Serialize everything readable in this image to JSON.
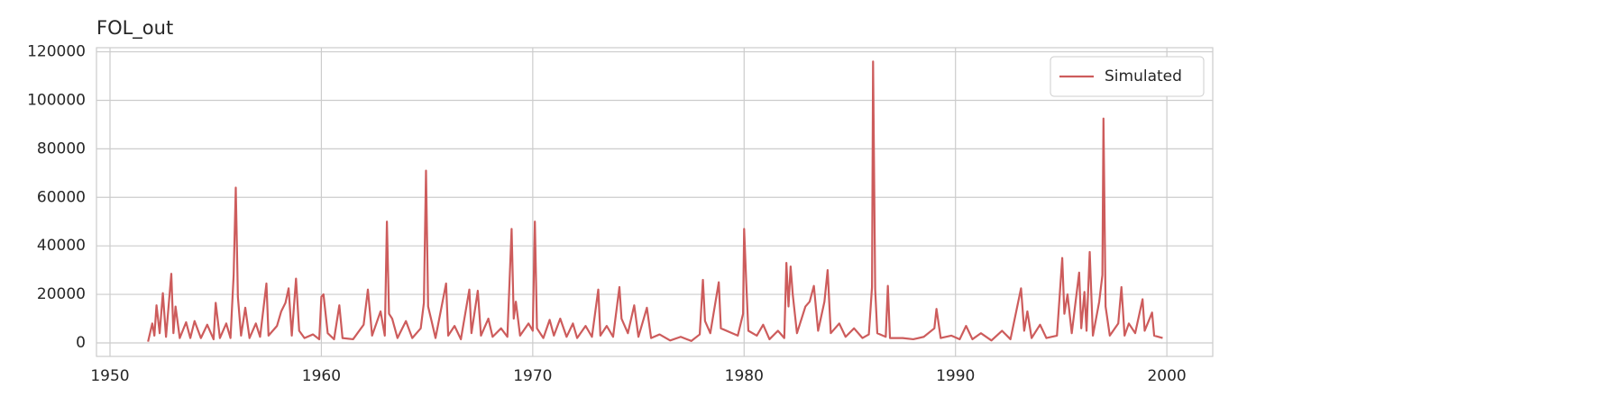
{
  "chart_data": {
    "type": "line",
    "title": "FOL_out",
    "x": [
      1951.8,
      1952.0,
      1952.1,
      1952.2,
      1952.35,
      1952.5,
      1952.65,
      1952.9,
      1953.0,
      1953.1,
      1953.3,
      1953.6,
      1953.8,
      1954.0,
      1954.3,
      1954.6,
      1954.9,
      1955.0,
      1955.2,
      1955.5,
      1955.7,
      1955.85,
      1955.95,
      1956.05,
      1956.2,
      1956.4,
      1956.6,
      1956.9,
      1957.1,
      1957.4,
      1957.5,
      1957.9,
      1958.1,
      1958.3,
      1958.45,
      1958.6,
      1958.8,
      1958.95,
      1959.2,
      1959.6,
      1959.9,
      1960.0,
      1960.1,
      1960.3,
      1960.6,
      1960.85,
      1961.0,
      1961.5,
      1962.0,
      1962.2,
      1962.4,
      1962.8,
      1963.0,
      1963.1,
      1963.2,
      1963.35,
      1963.6,
      1964.0,
      1964.3,
      1964.7,
      1964.85,
      1964.95,
      1965.05,
      1965.2,
      1965.4,
      1965.9,
      1966.0,
      1966.3,
      1966.6,
      1967.0,
      1967.1,
      1967.4,
      1967.55,
      1967.9,
      1968.1,
      1968.5,
      1968.8,
      1969.0,
      1969.1,
      1969.2,
      1969.4,
      1969.8,
      1970.0,
      1970.1,
      1970.2,
      1970.5,
      1970.8,
      1971.0,
      1971.3,
      1971.6,
      1971.9,
      1972.1,
      1972.5,
      1972.8,
      1973.1,
      1973.2,
      1973.5,
      1973.8,
      1974.1,
      1974.2,
      1974.5,
      1974.8,
      1975.0,
      1975.4,
      1975.6,
      1976.0,
      1976.5,
      1977.0,
      1977.5,
      1977.9,
      1978.05,
      1978.15,
      1978.4,
      1978.8,
      1978.9,
      1979.3,
      1979.7,
      1979.95,
      1980.0,
      1980.1,
      1980.2,
      1980.6,
      1980.9,
      1981.2,
      1981.6,
      1981.9,
      1982.0,
      1982.1,
      1982.2,
      1982.3,
      1982.5,
      1982.9,
      1983.1,
      1983.3,
      1983.5,
      1983.8,
      1983.95,
      1984.1,
      1984.5,
      1984.8,
      1985.2,
      1985.6,
      1985.9,
      1986.05,
      1986.1,
      1986.2,
      1986.3,
      1986.7,
      1986.8,
      1986.9,
      1987.5,
      1988.0,
      1988.5,
      1989.0,
      1989.1,
      1989.3,
      1989.8,
      1990.2,
      1990.5,
      1990.8,
      1991.2,
      1991.7,
      1992.2,
      1992.6,
      1993.1,
      1993.25,
      1993.4,
      1993.6,
      1994.0,
      1994.3,
      1994.8,
      1995.05,
      1995.15,
      1995.3,
      1995.5,
      1995.85,
      1995.95,
      1996.1,
      1996.2,
      1996.35,
      1996.5,
      1996.8,
      1996.95,
      1997.0,
      1997.1,
      1997.3,
      1997.7,
      1997.85,
      1998.0,
      1998.2,
      1998.5,
      1998.85,
      1998.95,
      1999.3,
      1999.4,
      1999.8
    ],
    "series": [
      {
        "name": "Simulated",
        "color": "#cd5c5c",
        "values": [
          500,
          8000,
          3000,
          15500,
          4000,
          20500,
          2500,
          28500,
          4000,
          15000,
          2000,
          8500,
          2000,
          9000,
          2000,
          7500,
          1500,
          16500,
          2000,
          8000,
          2000,
          28000,
          64000,
          19000,
          3000,
          14500,
          2000,
          8000,
          2500,
          24500,
          3000,
          7000,
          13000,
          16500,
          22500,
          3000,
          26500,
          5000,
          2000,
          3500,
          1500,
          19000,
          20000,
          4000,
          1500,
          15500,
          2000,
          1500,
          7500,
          22000,
          3000,
          13000,
          3000,
          50000,
          12000,
          10000,
          2000,
          9000,
          2000,
          6000,
          16500,
          71000,
          15000,
          9500,
          2000,
          24500,
          3000,
          7000,
          1500,
          22000,
          4000,
          21500,
          3000,
          10000,
          2500,
          6000,
          2500,
          47000,
          10000,
          17000,
          3000,
          8000,
          5000,
          50000,
          6000,
          2000,
          9500,
          3000,
          10000,
          2500,
          8000,
          2000,
          7000,
          2500,
          22000,
          3000,
          7000,
          2500,
          23000,
          10000,
          4000,
          15500,
          2500,
          14500,
          2000,
          3500,
          1000,
          2500,
          800,
          3500,
          26000,
          9000,
          4000,
          25000,
          6000,
          4500,
          3000,
          12000,
          47000,
          25000,
          5000,
          3000,
          7500,
          1500,
          5000,
          2000,
          33000,
          15000,
          31500,
          20000,
          4000,
          15000,
          17000,
          23500,
          5000,
          17000,
          30000,
          4000,
          8000,
          2500,
          6000,
          2000,
          3500,
          23000,
          116000,
          22000,
          4000,
          2500,
          23500,
          2000,
          2000,
          1500,
          2500,
          6000,
          14000,
          2000,
          3000,
          1500,
          7000,
          1500,
          4000,
          1000,
          5000,
          1500,
          22500,
          5000,
          13000,
          2000,
          7500,
          2000,
          3000,
          35000,
          12000,
          20000,
          4000,
          29000,
          6000,
          21000,
          5000,
          37500,
          3000,
          17000,
          28000,
          92500,
          15000,
          3000,
          8000,
          23000,
          3000,
          8000,
          4000,
          18000,
          5000,
          12500,
          3000,
          2000
        ]
      }
    ],
    "xlim": [
      1949.36,
      2002.17
    ],
    "xticks": [
      1950,
      1960,
      1970,
      1980,
      1990,
      2000
    ],
    "ylim": [
      -5570,
      121700
    ],
    "yticks": [
      0,
      20000,
      40000,
      60000,
      80000,
      100000,
      120000
    ],
    "grid": true,
    "legend": "upper right"
  }
}
